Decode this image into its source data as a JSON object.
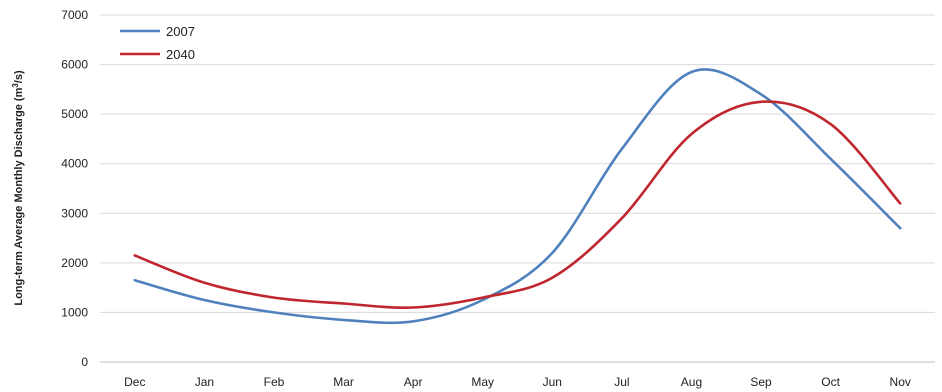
{
  "chart_data": {
    "type": "line",
    "categories": [
      "Dec",
      "Jan",
      "Feb",
      "Mar",
      "Apr",
      "May",
      "Jun",
      "Jul",
      "Aug",
      "Sep",
      "Oct",
      "Nov"
    ],
    "series": [
      {
        "name": "2007",
        "color": "#4f81bd",
        "values": [
          1650,
          1250,
          1000,
          850,
          820,
          1250,
          2200,
          4300,
          5850,
          5400,
          4100,
          2700
        ]
      },
      {
        "name": "2040",
        "color": "#c0262d",
        "values": [
          2150,
          1600,
          1300,
          1180,
          1100,
          1300,
          1700,
          2900,
          4600,
          5250,
          4800,
          3200
        ]
      }
    ],
    "ylabel_main": "Long-term Average Monthly Discharge (m",
    "ylabel_sup": "3",
    "ylabel_end": "/s)",
    "y_ticks": [
      "0",
      "1000",
      "2000",
      "3000",
      "4000",
      "5000",
      "6000",
      "7000"
    ],
    "ylim": [
      0,
      7000
    ],
    "grid": true,
    "legend_position": "top-left"
  }
}
